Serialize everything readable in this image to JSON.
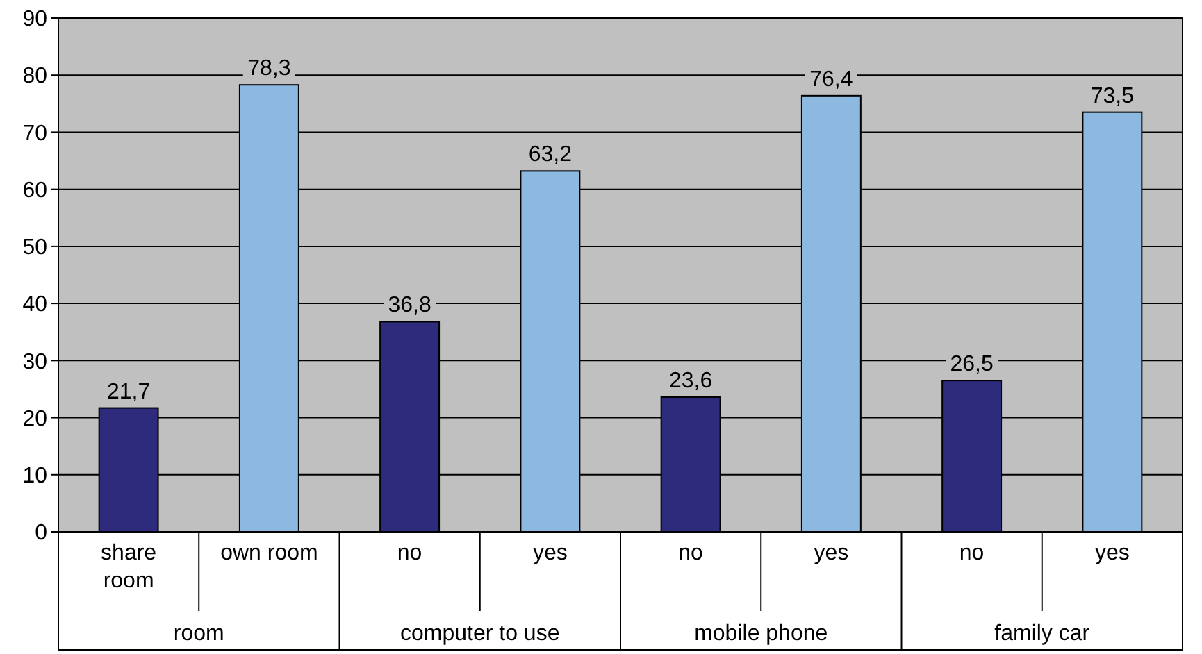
{
  "chart_data": {
    "type": "bar",
    "categories": [
      "share room",
      "own room",
      "no",
      "yes",
      "no",
      "yes",
      "no",
      "yes"
    ],
    "values": [
      21.7,
      78.3,
      36.8,
      63.2,
      23.6,
      76.4,
      26.5,
      73.5
    ],
    "colors": [
      "#2e2a7c",
      "#8db9e1",
      "#2e2a7c",
      "#8db9e1",
      "#2e2a7c",
      "#8db9e1",
      "#2e2a7c",
      "#8db9e1"
    ],
    "value_labels": [
      "21,7",
      "78,3",
      "36,8",
      "63,2",
      "23,6",
      "76,4",
      "26,5",
      "73,5"
    ],
    "annotations": [
      "room",
      "computer to use",
      "mobile phone",
      "family car"
    ],
    "ylim": [
      0,
      90
    ],
    "yticks": [
      0,
      10,
      20,
      30,
      40,
      50,
      60,
      70,
      80,
      90
    ],
    "grid": "y"
  }
}
